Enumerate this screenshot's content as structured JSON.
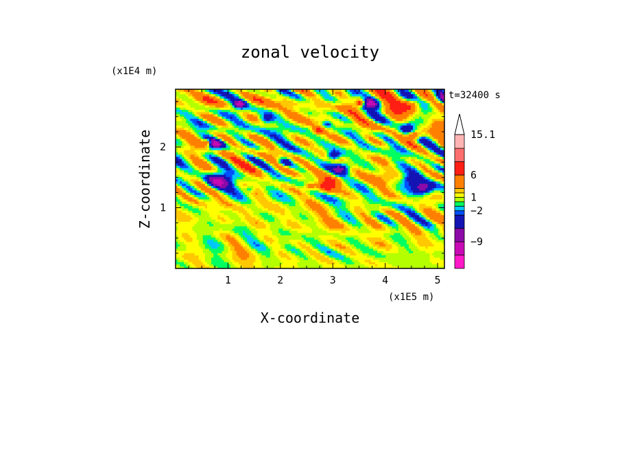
{
  "chart_data": {
    "type": "heatmap",
    "title": "zonal velocity",
    "xlabel": "X-coordinate",
    "ylabel": "Z-coordinate",
    "x_unit": "(x1E5 m)",
    "y_unit": "(x1E4 m)",
    "time_label": "t=32400 s",
    "xlim": [
      0,
      5.13
    ],
    "ylim": [
      0,
      2.95
    ],
    "x_ticks": [
      1,
      2,
      3,
      4,
      5
    ],
    "y_ticks": [
      1,
      2
    ],
    "x_minor_step": 0.25,
    "y_minor_step": 0.25,
    "colorbar": {
      "levels": [
        {
          "min": -15,
          "max": -12,
          "color": "#ff18c8"
        },
        {
          "min": -12,
          "max": -9,
          "color": "#c80ab4"
        },
        {
          "min": -9,
          "max": -6,
          "color": "#8c0aa8"
        },
        {
          "min": -6,
          "max": -3,
          "color": "#1414b4"
        },
        {
          "min": -3,
          "max": -2,
          "color": "#0050ff"
        },
        {
          "min": -2,
          "max": -1,
          "color": "#00c8ff"
        },
        {
          "min": -1,
          "max": 0,
          "color": "#00ff60"
        },
        {
          "min": 0,
          "max": 1,
          "color": "#b4ff00"
        },
        {
          "min": 1,
          "max": 2,
          "color": "#ffff00"
        },
        {
          "min": 2,
          "max": 3,
          "color": "#ffc800"
        },
        {
          "min": 3,
          "max": 6,
          "color": "#ff8000"
        },
        {
          "min": 6,
          "max": 9,
          "color": "#ff1e14"
        },
        {
          "min": 9,
          "max": 12,
          "color": "#ff6e6e"
        },
        {
          "min": 12,
          "max": 15.1,
          "color": "#ffb4b4"
        }
      ],
      "tick_labels": [
        {
          "value": 15.1,
          "label": "15.1"
        },
        {
          "value": 6,
          "label": "6"
        },
        {
          "value": 1,
          "label": "1"
        },
        {
          "value": -2,
          "label": "−2"
        },
        {
          "value": -9,
          "label": "−9"
        }
      ],
      "max_arrow_color": "#ffffff"
    },
    "field": {
      "description_of_pattern": "wavy horizontally-banded turbulent velocity field",
      "dominant_values_lower_half": [
        0,
        1,
        2,
        -1
      ],
      "dominant_values_upper_half": [
        1,
        2,
        3,
        -1,
        -2,
        -6
      ]
    }
  }
}
